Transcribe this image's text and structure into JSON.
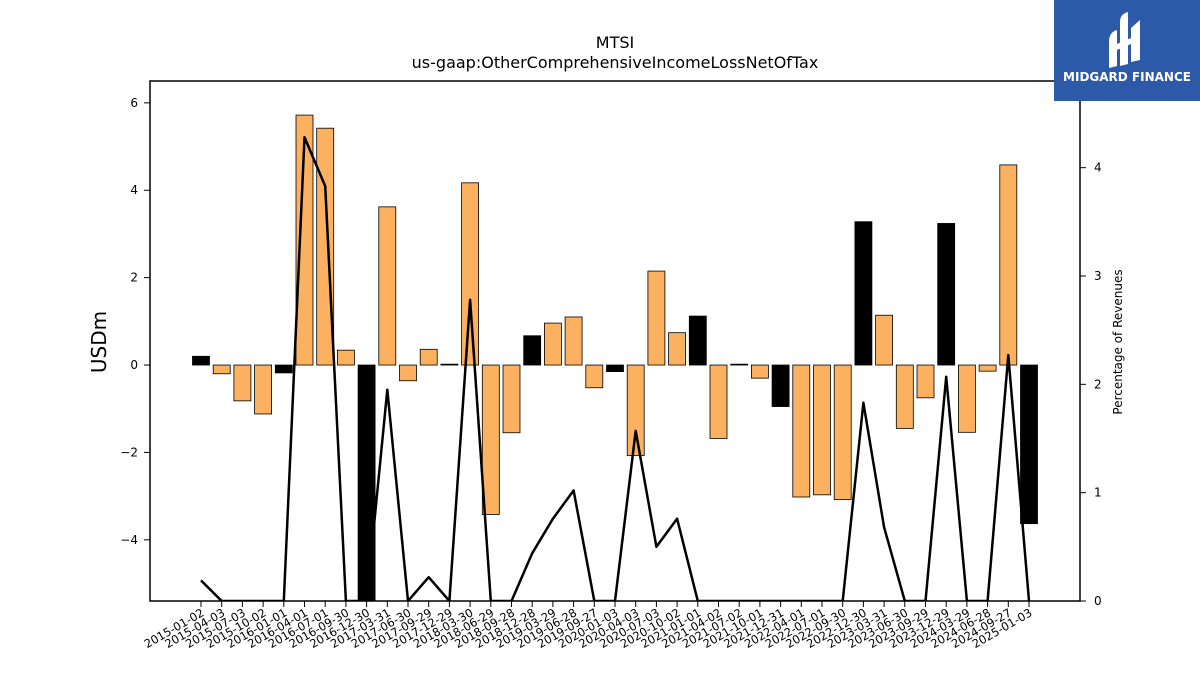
{
  "brand": {
    "name": "MIDGARD FINANCE",
    "bg_color": "#2c5aa8",
    "icon": "midgard-logo-icon"
  },
  "chart_data": {
    "type": "bar",
    "title": "MTSI",
    "subtitle": "us-gaap:OtherComprehensiveIncomeLossNetOfTax",
    "ylabel": "USDm",
    "y2label": "Percentage of Revenues",
    "ylim": [
      -5.4,
      6.5
    ],
    "y2lim": [
      0,
      4.8
    ],
    "yticks": [
      -4,
      -2,
      0,
      2,
      4,
      6
    ],
    "y2ticks": [
      0,
      1,
      2,
      3,
      4
    ],
    "colors": {
      "positive": "#fbb160",
      "negative_highlight": "#000000",
      "line": "#000000"
    },
    "categories": [
      "2015-01-02",
      "2015-04-03",
      "2015-07-03",
      "2015-10-02",
      "2016-01-01",
      "2016-04-01",
      "2016-07-01",
      "2016-09-30",
      "2016-12-30",
      "2017-03-31",
      "2017-06-30",
      "2017-09-29",
      "2017-12-29",
      "2018-03-30",
      "2018-06-29",
      "2018-09-28",
      "2018-12-28",
      "2019-03-29",
      "2019-06-28",
      "2019-09-27",
      "2020-01-03",
      "2020-04-03",
      "2020-07-03",
      "2020-10-02",
      "2021-01-01",
      "2021-04-02",
      "2021-07-02",
      "2021-10-01",
      "2021-12-31",
      "2022-04-01",
      "2022-07-01",
      "2022-09-30",
      "2022-12-30",
      "2023-03-31",
      "2023-06-30",
      "2023-09-29",
      "2023-12-29",
      "2024-03-29",
      "2024-06-28",
      "2024-09-27",
      "2025-01-03"
    ],
    "series": [
      {
        "type": "bar",
        "values": [
          0.2,
          -0.2,
          -0.82,
          -1.12,
          -0.18,
          5.72,
          5.42,
          0.34,
          -5.5,
          3.62,
          -0.36,
          0.36,
          0.02,
          4.17,
          -3.42,
          -1.55,
          0.67,
          0.96,
          1.1,
          -0.52,
          -0.15,
          -2.07,
          2.15,
          0.74,
          1.12,
          -1.68,
          0.02,
          -0.3,
          -0.95,
          -3.02,
          -2.97,
          -3.08,
          3.28,
          1.14,
          -1.45,
          -0.75,
          3.24,
          -1.54,
          -0.14,
          4.58,
          -3.63
        ],
        "highlight": [
          true,
          false,
          false,
          false,
          true,
          false,
          false,
          false,
          true,
          false,
          false,
          false,
          true,
          false,
          false,
          false,
          true,
          false,
          false,
          false,
          true,
          false,
          false,
          false,
          true,
          false,
          true,
          false,
          true,
          false,
          false,
          false,
          true,
          false,
          false,
          false,
          true,
          false,
          false,
          false,
          true
        ]
      },
      {
        "type": "line",
        "axis": "y2",
        "values": [
          0.19,
          0,
          0,
          0,
          0,
          4.28,
          3.83,
          0,
          0,
          1.95,
          0,
          0.22,
          0,
          2.78,
          0,
          0,
          0.44,
          0.76,
          1.02,
          0,
          0,
          1.57,
          0.5,
          0.76,
          0,
          0,
          0,
          0,
          0,
          0,
          0,
          0,
          1.83,
          0.68,
          0,
          0,
          2.07,
          0,
          0,
          2.27,
          0
        ]
      }
    ]
  }
}
